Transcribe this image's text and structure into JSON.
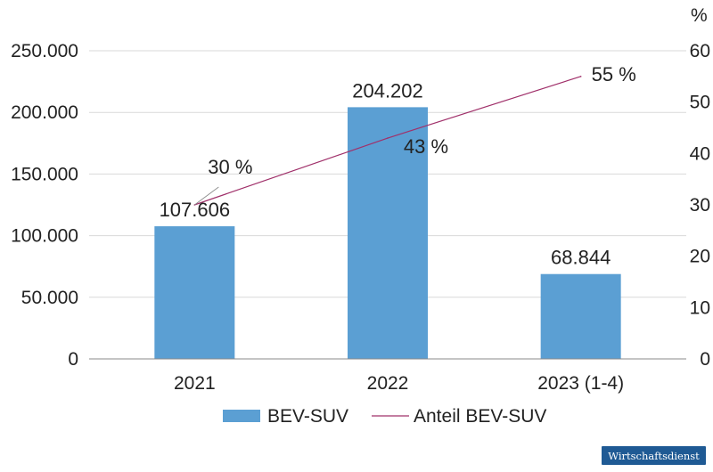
{
  "chart_data": {
    "type": "bar",
    "categories": [
      "2021",
      "2022",
      "2023 (1-4)"
    ],
    "series": [
      {
        "name": "BEV-SUV",
        "type": "bar",
        "axis": "left",
        "values": [
          107606,
          204202,
          68844
        ],
        "labels": [
          "107.606",
          "204.202",
          "68.844"
        ],
        "color": "#5b9fd3"
      },
      {
        "name": "Anteil BEV-SUV",
        "type": "line",
        "axis": "right",
        "values": [
          30,
          43,
          55
        ],
        "labels": [
          "30 %",
          "43 %",
          "55 %"
        ],
        "color": "#a0306a"
      }
    ],
    "y_left": {
      "ylim": [
        0,
        250000
      ],
      "ticks": [
        0,
        50000,
        100000,
        150000,
        200000,
        250000
      ],
      "tick_labels": [
        "0",
        "50.000",
        "100.000",
        "150.000",
        "200.000",
        "250.000"
      ]
    },
    "y_right": {
      "unit": "%",
      "ylim": [
        0,
        60
      ],
      "ticks": [
        0,
        10,
        20,
        30,
        40,
        50,
        60
      ],
      "tick_labels": [
        "0",
        "10",
        "20",
        "30",
        "40",
        "50",
        "60"
      ]
    },
    "grid": true,
    "legend_position": "bottom-center"
  },
  "brand": {
    "text": "Wirtschaftsdienst",
    "color": "#1f5a94"
  }
}
